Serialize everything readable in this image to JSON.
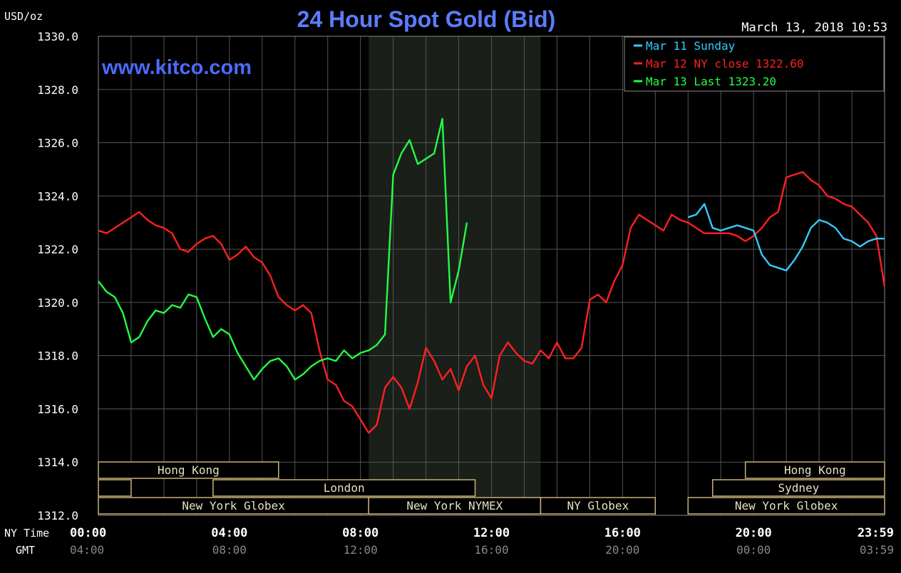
{
  "chart_data": {
    "type": "line",
    "title": "24 Hour Spot Gold (Bid)",
    "unit_label": "USD/oz",
    "timestamp": "March 13, 2018 10:53",
    "watermark": "www.kitco.com",
    "ylim": [
      1312,
      1330
    ],
    "y_ticks": [
      "1312.0",
      "1314.0",
      "1316.0",
      "1318.0",
      "1320.0",
      "1322.0",
      "1324.0",
      "1326.0",
      "1328.0",
      "1330.0"
    ],
    "x_range_hours": [
      0,
      24
    ],
    "x_row_label_ny": "NY Time",
    "x_row_label_gmt": "GMT",
    "x_ticks_ny": [
      "00:00",
      "04:00",
      "08:00",
      "12:00",
      "16:00",
      "20:00",
      "23:59"
    ],
    "x_ticks_gmt": [
      "04:00",
      "08:00",
      "12:00",
      "16:00",
      "20:00",
      "00:00",
      "03:59"
    ],
    "grid": true,
    "legend_position": "top-right",
    "legend": [
      {
        "text": "Mar 11 Sunday",
        "color": "#33ccff"
      },
      {
        "text": "Mar 12 NY close 1322.60",
        "color": "#ff2020"
      },
      {
        "text": "Mar 13 Last 1323.20",
        "color": "#22ff44"
      }
    ],
    "shaded_region_hours": [
      8.25,
      13.5
    ],
    "series": [
      {
        "color": "#ff2020",
        "points": [
          [
            0,
            1322.7
          ],
          [
            0.25,
            1322.6
          ],
          [
            0.5,
            1322.8
          ],
          [
            0.75,
            1323.0
          ],
          [
            1.0,
            1323.2
          ],
          [
            1.25,
            1323.4
          ],
          [
            1.5,
            1323.1
          ],
          [
            1.75,
            1322.9
          ],
          [
            2.0,
            1322.8
          ],
          [
            2.25,
            1322.6
          ],
          [
            2.5,
            1322.0
          ],
          [
            2.75,
            1321.9
          ],
          [
            3.0,
            1322.2
          ],
          [
            3.25,
            1322.4
          ],
          [
            3.5,
            1322.5
          ],
          [
            3.75,
            1322.2
          ],
          [
            4.0,
            1321.6
          ],
          [
            4.25,
            1321.8
          ],
          [
            4.5,
            1322.1
          ],
          [
            4.75,
            1321.7
          ],
          [
            5.0,
            1321.5
          ],
          [
            5.25,
            1321.0
          ],
          [
            5.5,
            1320.2
          ],
          [
            5.75,
            1319.9
          ],
          [
            6.0,
            1319.7
          ],
          [
            6.25,
            1319.9
          ],
          [
            6.5,
            1319.6
          ],
          [
            6.75,
            1318.2
          ],
          [
            7.0,
            1317.1
          ],
          [
            7.25,
            1316.9
          ],
          [
            7.5,
            1316.3
          ],
          [
            7.75,
            1316.1
          ],
          [
            8.0,
            1315.6
          ],
          [
            8.25,
            1315.1
          ],
          [
            8.5,
            1315.4
          ],
          [
            8.75,
            1316.8
          ],
          [
            9.0,
            1317.2
          ],
          [
            9.25,
            1316.8
          ],
          [
            9.5,
            1316.0
          ],
          [
            9.75,
            1317.0
          ],
          [
            10.0,
            1318.3
          ],
          [
            10.25,
            1317.8
          ],
          [
            10.5,
            1317.1
          ],
          [
            10.75,
            1317.5
          ],
          [
            11.0,
            1316.7
          ],
          [
            11.25,
            1317.6
          ],
          [
            11.5,
            1318.0
          ],
          [
            11.75,
            1316.9
          ],
          [
            12.0,
            1316.4
          ],
          [
            12.25,
            1318.0
          ],
          [
            12.5,
            1318.5
          ],
          [
            12.75,
            1318.1
          ],
          [
            13.0,
            1317.8
          ],
          [
            13.25,
            1317.7
          ],
          [
            13.5,
            1318.2
          ],
          [
            13.75,
            1317.9
          ],
          [
            14.0,
            1318.5
          ],
          [
            14.25,
            1317.9
          ],
          [
            14.5,
            1317.9
          ],
          [
            14.75,
            1318.3
          ],
          [
            15.0,
            1320.1
          ],
          [
            15.25,
            1320.3
          ],
          [
            15.5,
            1320.0
          ],
          [
            15.75,
            1320.8
          ],
          [
            16.0,
            1321.4
          ],
          [
            16.25,
            1322.8
          ],
          [
            16.5,
            1323.3
          ],
          [
            16.75,
            1323.1
          ],
          [
            17.0,
            1322.9
          ],
          [
            17.25,
            1322.7
          ],
          [
            17.5,
            1323.3
          ],
          [
            17.75,
            1323.1
          ],
          [
            18.0,
            1323.0
          ],
          [
            18.25,
            1322.8
          ],
          [
            18.5,
            1322.6
          ],
          [
            18.75,
            1322.6
          ],
          [
            19.0,
            1322.6
          ],
          [
            19.25,
            1322.6
          ],
          [
            19.5,
            1322.5
          ],
          [
            19.75,
            1322.3
          ],
          [
            20.0,
            1322.5
          ],
          [
            20.25,
            1322.8
          ],
          [
            20.5,
            1323.2
          ],
          [
            20.75,
            1323.4
          ],
          [
            21.0,
            1324.7
          ],
          [
            21.25,
            1324.8
          ],
          [
            21.5,
            1324.9
          ],
          [
            21.75,
            1324.6
          ],
          [
            22.0,
            1324.4
          ],
          [
            22.25,
            1324.0
          ],
          [
            22.5,
            1323.9
          ],
          [
            22.75,
            1323.7
          ],
          [
            23.0,
            1323.6
          ],
          [
            23.25,
            1323.3
          ],
          [
            23.5,
            1323.0
          ],
          [
            23.75,
            1322.5
          ],
          [
            24.0,
            1320.6
          ]
        ]
      },
      {
        "color": "#33ccff",
        "points": [
          [
            18.0,
            1323.2
          ],
          [
            18.25,
            1323.3
          ],
          [
            18.5,
            1323.7
          ],
          [
            18.75,
            1322.8
          ],
          [
            19.0,
            1322.7
          ],
          [
            19.25,
            1322.8
          ],
          [
            19.5,
            1322.9
          ],
          [
            19.75,
            1322.8
          ],
          [
            20.0,
            1322.7
          ],
          [
            20.25,
            1321.8
          ],
          [
            20.5,
            1321.4
          ],
          [
            20.75,
            1321.3
          ],
          [
            21.0,
            1321.2
          ],
          [
            21.25,
            1321.6
          ],
          [
            21.5,
            1322.1
          ],
          [
            21.75,
            1322.8
          ],
          [
            22.0,
            1323.1
          ],
          [
            22.25,
            1323.0
          ],
          [
            22.5,
            1322.8
          ],
          [
            22.75,
            1322.4
          ],
          [
            23.0,
            1322.3
          ],
          [
            23.25,
            1322.1
          ],
          [
            23.5,
            1322.3
          ],
          [
            23.75,
            1322.4
          ],
          [
            24.0,
            1322.4
          ]
        ]
      },
      {
        "color": "#22ff44",
        "points": [
          [
            0,
            1320.8
          ],
          [
            0.25,
            1320.4
          ],
          [
            0.5,
            1320.2
          ],
          [
            0.75,
            1319.6
          ],
          [
            1.0,
            1318.5
          ],
          [
            1.25,
            1318.7
          ],
          [
            1.5,
            1319.3
          ],
          [
            1.75,
            1319.7
          ],
          [
            2.0,
            1319.6
          ],
          [
            2.25,
            1319.9
          ],
          [
            2.5,
            1319.8
          ],
          [
            2.75,
            1320.3
          ],
          [
            3.0,
            1320.2
          ],
          [
            3.25,
            1319.4
          ],
          [
            3.5,
            1318.7
          ],
          [
            3.75,
            1319.0
          ],
          [
            4.0,
            1318.8
          ],
          [
            4.25,
            1318.1
          ],
          [
            4.5,
            1317.6
          ],
          [
            4.75,
            1317.1
          ],
          [
            5.0,
            1317.5
          ],
          [
            5.25,
            1317.8
          ],
          [
            5.5,
            1317.9
          ],
          [
            5.75,
            1317.6
          ],
          [
            6.0,
            1317.1
          ],
          [
            6.25,
            1317.3
          ],
          [
            6.5,
            1317.6
          ],
          [
            6.75,
            1317.8
          ],
          [
            7.0,
            1317.9
          ],
          [
            7.25,
            1317.8
          ],
          [
            7.5,
            1318.2
          ],
          [
            7.75,
            1317.9
          ],
          [
            8.0,
            1318.1
          ],
          [
            8.25,
            1318.2
          ],
          [
            8.5,
            1318.4
          ],
          [
            8.75,
            1318.8
          ],
          [
            9.0,
            1324.8
          ],
          [
            9.25,
            1325.6
          ],
          [
            9.5,
            1326.1
          ],
          [
            9.75,
            1325.2
          ],
          [
            10.0,
            1325.4
          ],
          [
            10.25,
            1325.6
          ],
          [
            10.5,
            1326.9
          ],
          [
            10.75,
            1320.0
          ],
          [
            11.0,
            1321.2
          ],
          [
            11.25,
            1323.0
          ]
        ]
      }
    ],
    "sessions": [
      {
        "label": "Hong Kong",
        "row": 0,
        "start": 0,
        "end": 5.5
      },
      {
        "label": "",
        "row": 1,
        "start": 0,
        "end": 1.0
      },
      {
        "label": "London",
        "row": 1,
        "start": 3.5,
        "end": 11.5
      },
      {
        "label": "New York Globex",
        "row": 2,
        "start": 0,
        "end": 8.25
      },
      {
        "label": "New York NYMEX",
        "row": 2,
        "start": 8.25,
        "end": 13.5
      },
      {
        "label": "NY Globex",
        "row": 2,
        "start": 13.5,
        "end": 17.0
      },
      {
        "label": "Hong Kong",
        "row": 0,
        "start": 19.75,
        "end": 24.0
      },
      {
        "label": "Sydney",
        "row": 1,
        "start": 18.75,
        "end": 24.0
      },
      {
        "label": "New York Globex",
        "row": 2,
        "start": 18.0,
        "end": 24.0
      }
    ]
  }
}
